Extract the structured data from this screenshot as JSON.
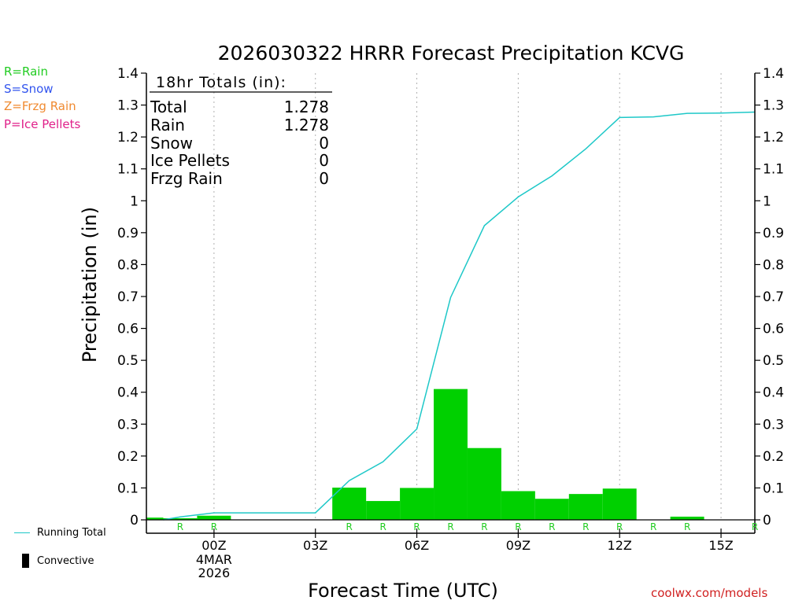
{
  "chart_data": {
    "type": "bar",
    "title": "2026030322 HRRR Forecast Precipitation KCVG",
    "xlabel": "Forecast Time (UTC)",
    "ylabel": "Precipitation (in)",
    "ylim": [
      0,
      1.4
    ],
    "xlim": [
      0,
      18
    ],
    "yticks": [
      "0",
      "0.1",
      "0.2",
      "0.3",
      "0.4",
      "0.5",
      "0.6",
      "0.7",
      "0.8",
      "0.9",
      "1",
      "1.1",
      "1.2",
      "1.3",
      "1.4"
    ],
    "xticks": [
      {
        "x": 2,
        "label": "00Z",
        "sub": [
          "4MAR",
          "2026"
        ]
      },
      {
        "x": 5,
        "label": "03Z",
        "sub": []
      },
      {
        "x": 8,
        "label": "06Z",
        "sub": []
      },
      {
        "x": 11,
        "label": "09Z",
        "sub": []
      },
      {
        "x": 14,
        "label": "12Z",
        "sub": []
      },
      {
        "x": 17,
        "label": "15Z",
        "sub": []
      }
    ],
    "grid": "vertical dotted at tick hours",
    "bar_color": "#00d000",
    "line_color": "#1ec8c8",
    "bars": [
      {
        "x": 0.5,
        "value": 0.007
      },
      {
        "x": 1,
        "value": 0.005
      },
      {
        "x": 2,
        "value": 0.013
      },
      {
        "x": 3,
        "value": 0
      },
      {
        "x": 4,
        "value": 0
      },
      {
        "x": 5,
        "value": 0
      },
      {
        "x": 6,
        "value": 0.101
      },
      {
        "x": 7,
        "value": 0.059
      },
      {
        "x": 8,
        "value": 0.1
      },
      {
        "x": 9,
        "value": 0.41
      },
      {
        "x": 10,
        "value": 0.225
      },
      {
        "x": 11,
        "value": 0.09
      },
      {
        "x": 12,
        "value": 0.066
      },
      {
        "x": 13,
        "value": 0.081
      },
      {
        "x": 14,
        "value": 0.098
      },
      {
        "x": 15,
        "value": 0
      },
      {
        "x": 16,
        "value": 0.01
      },
      {
        "x": 17,
        "value": 0
      }
    ],
    "precip_type_markers": [
      {
        "x": 1,
        "type": "R"
      },
      {
        "x": 2,
        "type": "R"
      },
      {
        "x": 6,
        "type": "R"
      },
      {
        "x": 7,
        "type": "R"
      },
      {
        "x": 8,
        "type": "R"
      },
      {
        "x": 9,
        "type": "R"
      },
      {
        "x": 10,
        "type": "R"
      },
      {
        "x": 11,
        "type": "R"
      },
      {
        "x": 12,
        "type": "R"
      },
      {
        "x": 13,
        "type": "R"
      },
      {
        "x": 14,
        "type": "R"
      },
      {
        "x": 15,
        "type": "R"
      },
      {
        "x": 16,
        "type": "R"
      },
      {
        "x": 18,
        "type": "R"
      }
    ],
    "running_total": {
      "name": "Running Total",
      "x": [
        0.5,
        1,
        2,
        3,
        4,
        5,
        6,
        7,
        8,
        9,
        10,
        11,
        12,
        13,
        14,
        15,
        16,
        17,
        18
      ],
      "y": [
        0,
        0.009,
        0.022,
        0.022,
        0.022,
        0.022,
        0.123,
        0.182,
        0.285,
        0.697,
        0.922,
        1.012,
        1.078,
        1.163,
        1.261,
        1.263,
        1.274,
        1.275,
        1.278
      ]
    }
  },
  "totals": {
    "heading": "18hr Totals (in):",
    "rows": [
      {
        "label": "Total",
        "value": "1.278"
      },
      {
        "label": "Rain",
        "value": "1.278"
      },
      {
        "label": "Snow",
        "value": "0"
      },
      {
        "label": "Ice Pellets",
        "value": "0"
      },
      {
        "label": "Frzg Rain",
        "value": "0"
      }
    ]
  },
  "type_legend": [
    {
      "text": "R=Rain",
      "color": "#22cc22"
    },
    {
      "text": "S=Snow",
      "color": "#3355ee"
    },
    {
      "text": "Z=Frzg Rain",
      "color": "#f08a30"
    },
    {
      "text": "P=Ice Pellets",
      "color": "#e0208a"
    }
  ],
  "bottom_legend": {
    "running_total": "Running Total",
    "convective": "Convective"
  },
  "credit": {
    "text": "coolwx.com/models",
    "color": "#d02020"
  }
}
